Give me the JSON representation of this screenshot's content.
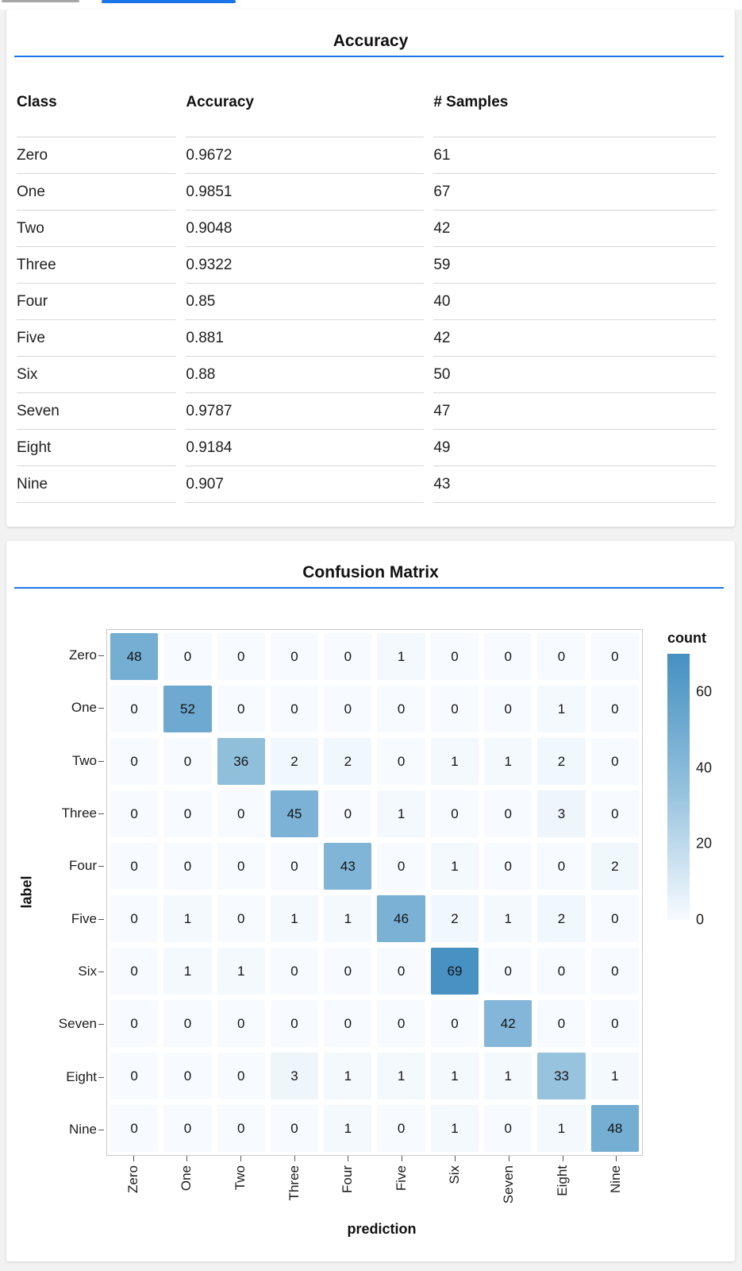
{
  "page": {
    "background": "#f2f2f3",
    "surface": "#ffffff",
    "accent_blue": "#1a73e8",
    "inactive_tab_gray": "#a6a6a6",
    "table_border": "#d7d7d7"
  },
  "accuracy_card": {
    "title": "Accuracy",
    "columns": [
      "Class",
      "Accuracy",
      "# Samples"
    ],
    "rows": [
      {
        "class": "Zero",
        "accuracy": "0.9672",
        "samples": "61"
      },
      {
        "class": "One",
        "accuracy": "0.9851",
        "samples": "67"
      },
      {
        "class": "Two",
        "accuracy": "0.9048",
        "samples": "42"
      },
      {
        "class": "Three",
        "accuracy": "0.9322",
        "samples": "59"
      },
      {
        "class": "Four",
        "accuracy": "0.85",
        "samples": "40"
      },
      {
        "class": "Five",
        "accuracy": "0.881",
        "samples": "42"
      },
      {
        "class": "Six",
        "accuracy": "0.88",
        "samples": "50"
      },
      {
        "class": "Seven",
        "accuracy": "0.9787",
        "samples": "47"
      },
      {
        "class": "Eight",
        "accuracy": "0.9184",
        "samples": "49"
      },
      {
        "class": "Nine",
        "accuracy": "0.907",
        "samples": "43"
      }
    ]
  },
  "confusion_card": {
    "title": "Confusion Matrix",
    "chart_data": {
      "type": "heatmap",
      "title": "Confusion Matrix",
      "xlabel": "prediction",
      "ylabel": "label",
      "x_categories": [
        "Zero",
        "One",
        "Two",
        "Three",
        "Four",
        "Five",
        "Six",
        "Seven",
        "Eight",
        "Nine"
      ],
      "y_categories": [
        "Zero",
        "One",
        "Two",
        "Three",
        "Four",
        "Five",
        "Six",
        "Seven",
        "Eight",
        "Nine"
      ],
      "matrix": [
        [
          48,
          0,
          0,
          0,
          0,
          1,
          0,
          0,
          0,
          0
        ],
        [
          0,
          52,
          0,
          0,
          0,
          0,
          0,
          0,
          1,
          0
        ],
        [
          0,
          0,
          36,
          2,
          2,
          0,
          1,
          1,
          2,
          0
        ],
        [
          0,
          0,
          0,
          45,
          0,
          1,
          0,
          0,
          3,
          0
        ],
        [
          0,
          0,
          0,
          0,
          43,
          0,
          1,
          0,
          0,
          2
        ],
        [
          0,
          1,
          0,
          1,
          1,
          46,
          2,
          1,
          2,
          0
        ],
        [
          0,
          1,
          1,
          0,
          0,
          0,
          69,
          0,
          0,
          0
        ],
        [
          0,
          0,
          0,
          0,
          0,
          0,
          0,
          42,
          0,
          0
        ],
        [
          0,
          0,
          0,
          3,
          1,
          1,
          1,
          1,
          33,
          1
        ],
        [
          0,
          0,
          0,
          0,
          1,
          0,
          1,
          0,
          1,
          48
        ]
      ],
      "color_scale": {
        "domain": [
          0,
          70
        ],
        "low": "#f7fbff",
        "mid": "#92c0dd",
        "high": "#4590c2"
      },
      "legend": {
        "title": "count",
        "ticks": [
          60,
          40,
          20,
          0
        ],
        "position": "right",
        "gradient_vertical": true
      },
      "grid": false
    }
  }
}
